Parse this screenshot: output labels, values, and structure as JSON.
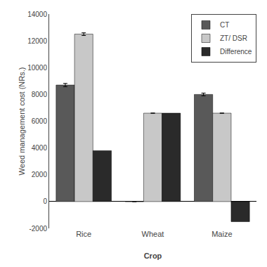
{
  "chart_data": {
    "type": "bar",
    "xlabel": "Crop",
    "ylabel": "Weed management cost (NRs.)",
    "categories": [
      "Rice",
      "Wheat",
      "Maize"
    ],
    "series": [
      {
        "name": "CT",
        "color": "#595959",
        "values": [
          8700,
          0,
          8000
        ],
        "errors": [
          120,
          0,
          100
        ]
      },
      {
        "name": "ZT/ DSR",
        "color": "#c8c8c8",
        "values": [
          12500,
          6600,
          6600
        ],
        "errors": [
          100,
          0,
          0
        ]
      },
      {
        "name": "Difference",
        "color": "#2a2a2a",
        "values": [
          3800,
          6600,
          -1500
        ]
      }
    ],
    "ylim": [
      -2000,
      14000
    ],
    "yticks": [
      -2000,
      0,
      2000,
      4000,
      6000,
      8000,
      10000,
      12000,
      14000
    ],
    "legend": "upper right",
    "grid": false
  }
}
